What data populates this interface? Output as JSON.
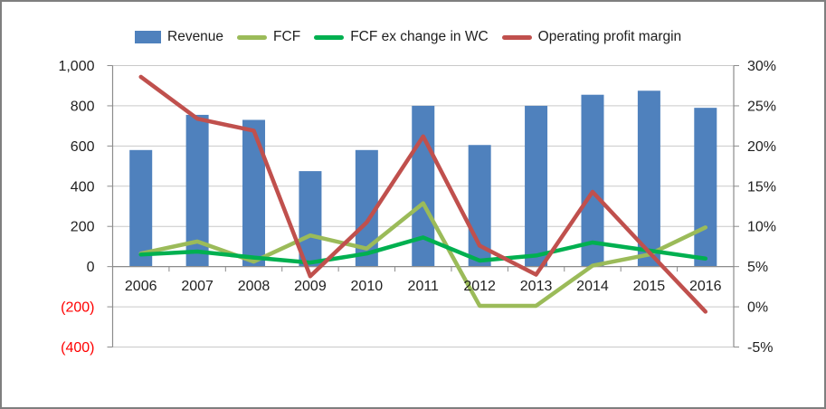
{
  "chart_data": {
    "type": "combo",
    "title": "",
    "legend_position": "top",
    "grid": true,
    "categories": [
      "2006",
      "2007",
      "2008",
      "2009",
      "2010",
      "2011",
      "2012",
      "2013",
      "2014",
      "2015",
      "2016"
    ],
    "series": [
      {
        "name": "Revenue",
        "type": "bar",
        "axis": "left",
        "color": "#4F81BD",
        "values": [
          580,
          755,
          730,
          475,
          580,
          800,
          605,
          800,
          855,
          875,
          790
        ]
      },
      {
        "name": "FCF",
        "type": "line",
        "axis": "left",
        "color": "#9BBB59",
        "values": [
          65,
          125,
          25,
          155,
          90,
          315,
          -195,
          -195,
          5,
          60,
          195
        ]
      },
      {
        "name": "FCF ex change in WC",
        "type": "line",
        "axis": "left",
        "color": "#00B050",
        "values": [
          60,
          75,
          45,
          20,
          65,
          145,
          30,
          55,
          120,
          80,
          40
        ]
      },
      {
        "name": "Operating profit margin",
        "type": "line",
        "axis": "right",
        "color": "#C0504D",
        "values": [
          28.6,
          23.4,
          21.9,
          3.8,
          10.5,
          21.2,
          7.6,
          4.0,
          14.3,
          6.8,
          -0.6
        ]
      }
    ],
    "left_axis": {
      "range": [
        -400,
        1000
      ],
      "negative_color": "#FF0000",
      "ticks": [
        {
          "label": "1,000",
          "value": 1000
        },
        {
          "label": "800",
          "value": 800
        },
        {
          "label": "600",
          "value": 600
        },
        {
          "label": "400",
          "value": 400
        },
        {
          "label": "200",
          "value": 200
        },
        {
          "label": "0",
          "value": 0
        },
        {
          "label": "(200)",
          "value": -200
        },
        {
          "label": "(400)",
          "value": -400
        }
      ]
    },
    "right_axis": {
      "range": [
        -5,
        30
      ],
      "ticks": [
        {
          "label": "30%",
          "value": 30
        },
        {
          "label": "25%",
          "value": 25
        },
        {
          "label": "20%",
          "value": 20
        },
        {
          "label": "15%",
          "value": 15
        },
        {
          "label": "10%",
          "value": 10
        },
        {
          "label": "5%",
          "value": 5
        },
        {
          "label": "0%",
          "value": 0
        },
        {
          "label": "-5%",
          "value": -5
        }
      ]
    }
  },
  "colors": {
    "background": "#FFFFFF",
    "frame_border": "#7F7F7F",
    "grid": "#C9C9C9",
    "axis": "#8C8C8C",
    "text": "#1F1F1F",
    "negative_text": "#FF0000",
    "bar_blue": "#4F81BD",
    "fcf_olive": "#9BBB59",
    "fcf_ex_wc_green": "#00B050",
    "opm_red": "#C0504D"
  }
}
